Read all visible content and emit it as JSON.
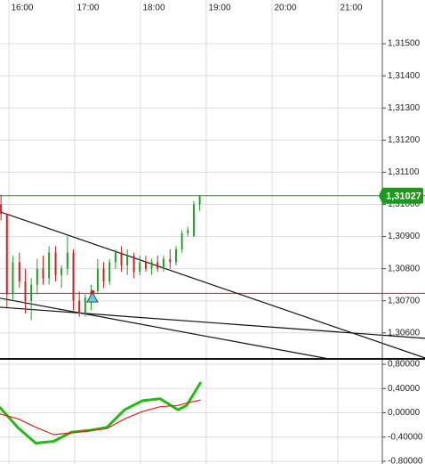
{
  "chart_data": [
    {
      "type": "candlestick",
      "x": [
        15.88,
        15.97,
        16.06,
        16.16,
        16.25,
        16.34,
        16.43,
        16.52,
        16.61,
        16.71,
        16.8,
        16.89,
        16.98,
        17.07,
        17.16,
        17.25,
        17.35,
        17.44,
        17.53,
        17.62,
        17.71,
        17.8,
        17.9,
        17.99,
        18.08,
        18.17,
        18.26,
        18.35,
        18.45,
        18.54,
        18.63,
        18.72,
        18.81,
        18.9
      ],
      "open": [
        1.31,
        1.3097,
        1.3072,
        1.3082,
        1.3076,
        1.307,
        1.3075,
        1.308,
        1.3077,
        1.3085,
        1.3078,
        1.308,
        1.3085,
        1.307,
        1.3066,
        1.3071,
        1.3073,
        1.308,
        1.3076,
        1.3082,
        1.3085,
        1.3081,
        1.3084,
        1.3079,
        1.3082,
        1.308,
        1.3082,
        1.308,
        1.3083,
        1.3082,
        1.3086,
        1.3091,
        1.309,
        1.31
      ],
      "high": [
        1.3103,
        1.3097,
        1.3084,
        1.3085,
        1.308,
        1.3077,
        1.3083,
        1.3084,
        1.3087,
        1.3087,
        1.3081,
        1.309,
        1.3086,
        1.3073,
        1.3072,
        1.3075,
        1.3083,
        1.3082,
        1.3083,
        1.3086,
        1.3087,
        1.3086,
        1.3085,
        1.3084,
        1.3084,
        1.3083,
        1.3084,
        1.3084,
        1.3086,
        1.3087,
        1.3092,
        1.3093,
        1.3101,
        1.31027
      ],
      "low": [
        1.3095,
        1.3068,
        1.307,
        1.3074,
        1.3066,
        1.3064,
        1.3072,
        1.3075,
        1.3075,
        1.3076,
        1.3074,
        1.3078,
        1.3067,
        1.3065,
        1.3065,
        1.3067,
        1.3072,
        1.3074,
        1.3075,
        1.308,
        1.3079,
        1.3078,
        1.3077,
        1.3078,
        1.3079,
        1.3078,
        1.3079,
        1.3079,
        1.308,
        1.3081,
        1.3085,
        1.309,
        1.309,
        1.3098
      ],
      "close": [
        1.3097,
        1.3072,
        1.3082,
        1.3076,
        1.307,
        1.3075,
        1.308,
        1.3077,
        1.3085,
        1.3078,
        1.308,
        1.3085,
        1.307,
        1.3066,
        1.3071,
        1.3073,
        1.308,
        1.3076,
        1.3082,
        1.3085,
        1.3081,
        1.3084,
        1.3079,
        1.3082,
        1.308,
        1.3082,
        1.308,
        1.3083,
        1.3082,
        1.3086,
        1.3091,
        1.3092,
        1.31,
        1.31027
      ],
      "up_color": "#22a022",
      "down_color": "#d02020",
      "xlim": [
        15.865,
        22.324
      ],
      "xticks": [
        {
          "value": 16,
          "label": "16:00"
        },
        {
          "value": 17,
          "label": "17:00"
        },
        {
          "value": 18,
          "label": "18:00"
        },
        {
          "value": 19,
          "label": "19:00"
        },
        {
          "value": 20,
          "label": "20:00"
        },
        {
          "value": 21,
          "label": "21:00"
        }
      ],
      "ylim": [
        1.30519,
        1.31636
      ],
      "yticks": [
        {
          "value": 1.315,
          "label": "1,31500"
        },
        {
          "value": 1.314,
          "label": "1,31400"
        },
        {
          "value": 1.313,
          "label": "1,31300"
        },
        {
          "value": 1.312,
          "label": "1,31200"
        },
        {
          "value": 1.311,
          "label": "1,31100"
        },
        {
          "value": 1.31,
          "label": "1,31000"
        },
        {
          "value": 1.309,
          "label": "1,30900"
        },
        {
          "value": 1.308,
          "label": "1,30800"
        },
        {
          "value": 1.307,
          "label": "1,30700"
        },
        {
          "value": 1.306,
          "label": "1,30600"
        }
      ],
      "grid": true,
      "lines": [
        {
          "x": [
            15.865,
            22.324
          ],
          "y": [
            1.30977,
            1.30522
          ],
          "color": "#111111"
        },
        {
          "x": [
            15.865,
            20.865
          ],
          "y": [
            1.30708,
            1.30519
          ],
          "color": "#111111"
        },
        {
          "x": [
            15.865,
            22.324
          ],
          "y": [
            1.3068,
            1.30583
          ],
          "color": "#111111"
        }
      ],
      "levels": [
        {
          "value": 1.30723,
          "color": "#d02020"
        },
        {
          "value": 1.31027,
          "label": "1,31027",
          "color": "#1a9a1a"
        }
      ],
      "signal": {
        "x": 17.27,
        "y": 1.3071,
        "color": "#6cc6d6"
      }
    },
    {
      "type": "line",
      "x": [
        15.87,
        16.14,
        16.41,
        16.68,
        16.95,
        17.22,
        17.49,
        17.76,
        18.03,
        18.3,
        18.57,
        18.7,
        18.91
      ],
      "series": [
        {
          "color": "#22bb11",
          "width": 3,
          "values": [
            0.08,
            -0.25,
            -0.5,
            -0.47,
            -0.32,
            -0.29,
            -0.24,
            0.05,
            0.2,
            0.23,
            0.05,
            0.12,
            0.49
          ]
        },
        {
          "color": "#e02020",
          "width": 1.2,
          "values": [
            -0.02,
            -0.1,
            -0.24,
            -0.36,
            -0.33,
            -0.3,
            -0.26,
            -0.1,
            0.02,
            0.1,
            0.12,
            0.16,
            0.21
          ]
        }
      ],
      "xlim": [
        15.865,
        22.324
      ],
      "ylim": [
        -0.844,
        0.888
      ],
      "yticks": [
        {
          "value": 0.8,
          "label": "0,80000"
        },
        {
          "value": 0.4,
          "label": "0,40000"
        },
        {
          "value": 0,
          "label": "0,00000"
        },
        {
          "value": -0.4,
          "label": "-0,40000"
        },
        {
          "value": -0.8,
          "label": "-0,80000"
        }
      ],
      "grid": true
    }
  ]
}
